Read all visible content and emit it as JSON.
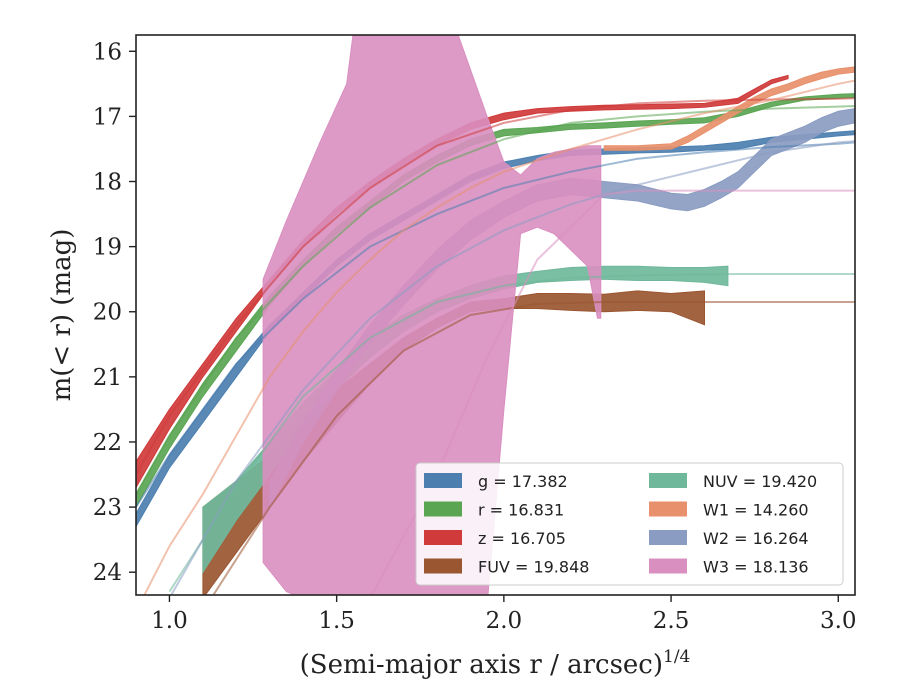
{
  "chart_data": {
    "type": "line",
    "xlabel": "(Semi-major axis r / arcsec)",
    "xlabel_sup": "1/4",
    "ylabel": "m(< r) (mag)",
    "xlim": [
      0.9,
      3.05
    ],
    "ylim": [
      24.35,
      15.75
    ],
    "y_inverted": true,
    "xticks": [
      1.0,
      1.5,
      2.0,
      2.5,
      3.0
    ],
    "xtick_labels": [
      "1.0",
      "1.5",
      "2.0",
      "2.5",
      "3.0"
    ],
    "yticks": [
      16,
      17,
      18,
      19,
      20,
      21,
      22,
      23,
      24
    ],
    "ytick_labels": [
      "16",
      "17",
      "18",
      "19",
      "20",
      "21",
      "22",
      "23",
      "24"
    ],
    "grid": false,
    "legend_placement": "lower-right",
    "series": [
      {
        "name": "g",
        "legend_label": "g = 17.382",
        "color": "#4c7fb0",
        "band": [
          [
            0.9,
            23.3,
            23.1
          ],
          [
            1.0,
            22.4,
            22.2
          ],
          [
            1.1,
            21.7,
            21.5
          ],
          [
            1.2,
            21.0,
            20.8
          ],
          [
            1.3,
            20.3,
            20.2
          ],
          [
            1.4,
            19.8,
            19.7
          ],
          [
            1.5,
            19.3,
            19.2
          ],
          [
            1.6,
            18.9,
            18.8
          ],
          [
            1.7,
            18.6,
            18.5
          ],
          [
            1.8,
            18.3,
            18.2
          ],
          [
            1.9,
            18.0,
            17.9
          ],
          [
            2.0,
            17.8,
            17.7
          ],
          [
            2.1,
            17.68,
            17.6
          ],
          [
            2.2,
            17.6,
            17.52
          ],
          [
            2.3,
            17.58,
            17.5
          ],
          [
            2.4,
            17.56,
            17.48
          ],
          [
            2.5,
            17.55,
            17.47
          ],
          [
            2.6,
            17.52,
            17.45
          ],
          [
            2.7,
            17.5,
            17.4
          ],
          [
            2.8,
            17.4,
            17.32
          ],
          [
            2.9,
            17.35,
            17.28
          ],
          [
            3.0,
            17.3,
            17.24
          ],
          [
            3.05,
            17.28,
            17.22
          ]
        ],
        "model": [
          [
            0.9,
            23.0
          ],
          [
            1.0,
            22.2
          ],
          [
            1.2,
            20.8
          ],
          [
            1.4,
            19.8
          ],
          [
            1.6,
            19.0
          ],
          [
            1.8,
            18.5
          ],
          [
            2.0,
            18.1
          ],
          [
            2.2,
            17.85
          ],
          [
            2.4,
            17.65
          ],
          [
            2.6,
            17.55
          ],
          [
            2.8,
            17.47
          ],
          [
            3.0,
            17.42
          ],
          [
            3.05,
            17.4
          ]
        ]
      },
      {
        "name": "r",
        "legend_label": "r = 16.831",
        "color": "#5aa552",
        "band": [
          [
            0.9,
            23.0,
            22.8
          ],
          [
            1.0,
            22.1,
            21.9
          ],
          [
            1.1,
            21.3,
            21.1
          ],
          [
            1.2,
            20.6,
            20.4
          ],
          [
            1.3,
            19.9,
            19.75
          ],
          [
            1.4,
            19.3,
            19.2
          ],
          [
            1.5,
            18.8,
            18.7
          ],
          [
            1.6,
            18.4,
            18.3
          ],
          [
            1.7,
            18.0,
            17.9
          ],
          [
            1.8,
            17.7,
            17.6
          ],
          [
            1.9,
            17.45,
            17.35
          ],
          [
            2.0,
            17.3,
            17.2
          ],
          [
            2.1,
            17.25,
            17.17
          ],
          [
            2.2,
            17.2,
            17.12
          ],
          [
            2.3,
            17.18,
            17.1
          ],
          [
            2.4,
            17.15,
            17.07
          ],
          [
            2.5,
            17.12,
            17.05
          ],
          [
            2.6,
            17.1,
            17.02
          ],
          [
            2.7,
            17.0,
            16.92
          ],
          [
            2.8,
            16.85,
            16.78
          ],
          [
            2.9,
            16.75,
            16.7
          ],
          [
            3.0,
            16.72,
            16.66
          ],
          [
            3.05,
            16.71,
            16.65
          ]
        ],
        "model": [
          [
            0.9,
            22.8
          ],
          [
            1.0,
            21.9
          ],
          [
            1.2,
            20.4
          ],
          [
            1.4,
            19.3
          ],
          [
            1.6,
            18.4
          ],
          [
            1.8,
            17.75
          ],
          [
            2.0,
            17.35
          ],
          [
            2.2,
            17.1
          ],
          [
            2.4,
            17.0
          ],
          [
            2.6,
            16.93
          ],
          [
            2.8,
            16.88
          ],
          [
            3.0,
            16.85
          ],
          [
            3.05,
            16.84
          ]
        ]
      },
      {
        "name": "z",
        "legend_label": "z = 16.705",
        "color": "#d03a3a",
        "band": [
          [
            0.9,
            22.7,
            22.3
          ],
          [
            1.0,
            21.8,
            21.5
          ],
          [
            1.1,
            21.0,
            20.8
          ],
          [
            1.2,
            20.3,
            20.1
          ],
          [
            1.3,
            19.6,
            19.5
          ],
          [
            1.4,
            19.0,
            18.9
          ],
          [
            1.5,
            18.5,
            18.4
          ],
          [
            1.6,
            18.1,
            18.0
          ],
          [
            1.7,
            17.75,
            17.65
          ],
          [
            1.8,
            17.45,
            17.35
          ],
          [
            1.9,
            17.2,
            17.1
          ],
          [
            2.0,
            17.05,
            16.95
          ],
          [
            2.1,
            16.95,
            16.88
          ],
          [
            2.2,
            16.92,
            16.85
          ],
          [
            2.3,
            16.9,
            16.83
          ],
          [
            2.4,
            16.89,
            16.82
          ],
          [
            2.5,
            16.88,
            16.81
          ],
          [
            2.6,
            16.86,
            16.8
          ],
          [
            2.7,
            16.8,
            16.72
          ],
          [
            2.75,
            16.65,
            16.58
          ],
          [
            2.8,
            16.5,
            16.44
          ],
          [
            2.85,
            16.42,
            16.37
          ]
        ],
        "model": [
          [
            0.9,
            22.5
          ],
          [
            1.0,
            21.6
          ],
          [
            1.2,
            20.2
          ],
          [
            1.4,
            19.0
          ],
          [
            1.6,
            18.1
          ],
          [
            1.8,
            17.45
          ],
          [
            2.0,
            17.1
          ],
          [
            2.2,
            16.9
          ],
          [
            2.4,
            16.8
          ],
          [
            2.6,
            16.76
          ],
          [
            2.8,
            16.74
          ],
          [
            3.0,
            16.73
          ],
          [
            3.05,
            16.72
          ]
        ]
      },
      {
        "name": "FUV",
        "legend_label": "FUV = 19.848",
        "color": "#9a5631",
        "band": [
          [
            1.1,
            24.4,
            23.0
          ],
          [
            1.2,
            23.7,
            22.6
          ],
          [
            1.3,
            23.0,
            22.2
          ],
          [
            1.4,
            22.3,
            21.7
          ],
          [
            1.5,
            21.7,
            21.2
          ],
          [
            1.6,
            21.1,
            20.8
          ],
          [
            1.7,
            20.6,
            20.4
          ],
          [
            1.8,
            20.25,
            20.1
          ],
          [
            1.9,
            20.0,
            19.85
          ],
          [
            2.0,
            19.95,
            19.8
          ],
          [
            2.1,
            19.95,
            19.72
          ],
          [
            2.2,
            19.98,
            19.72
          ],
          [
            2.3,
            20.0,
            19.73
          ],
          [
            2.4,
            19.98,
            19.68
          ],
          [
            2.5,
            20.0,
            19.72
          ],
          [
            2.6,
            20.2,
            19.68
          ]
        ],
        "model": [
          [
            1.1,
            24.6
          ],
          [
            1.3,
            23.0
          ],
          [
            1.5,
            21.6
          ],
          [
            1.7,
            20.6
          ],
          [
            1.9,
            20.05
          ],
          [
            2.1,
            19.88
          ],
          [
            2.3,
            19.85
          ],
          [
            2.6,
            19.85
          ],
          [
            3.05,
            19.85
          ]
        ]
      },
      {
        "name": "NUV",
        "legend_label": "NUV = 19.420",
        "color": "#6fb89b",
        "band": [
          [
            1.1,
            24.0,
            23.0
          ],
          [
            1.2,
            23.2,
            22.6
          ],
          [
            1.3,
            22.5,
            22.0
          ],
          [
            1.4,
            21.8,
            21.4
          ],
          [
            1.5,
            21.2,
            20.9
          ],
          [
            1.6,
            20.7,
            20.4
          ],
          [
            1.7,
            20.3,
            20.05
          ],
          [
            1.8,
            20.0,
            19.8
          ],
          [
            1.9,
            19.8,
            19.6
          ],
          [
            2.0,
            19.65,
            19.45
          ],
          [
            2.1,
            19.55,
            19.38
          ],
          [
            2.2,
            19.52,
            19.32
          ],
          [
            2.3,
            19.5,
            19.3
          ],
          [
            2.4,
            19.52,
            19.3
          ],
          [
            2.5,
            19.52,
            19.32
          ],
          [
            2.6,
            19.55,
            19.32
          ],
          [
            2.67,
            19.6,
            19.3
          ]
        ],
        "model": [
          [
            1.0,
            24.3
          ],
          [
            1.2,
            22.7
          ],
          [
            1.4,
            21.3
          ],
          [
            1.6,
            20.4
          ],
          [
            1.8,
            19.85
          ],
          [
            2.0,
            19.6
          ],
          [
            2.2,
            19.48
          ],
          [
            2.4,
            19.44
          ],
          [
            2.7,
            19.42
          ],
          [
            3.05,
            19.42
          ]
        ]
      },
      {
        "name": "W1",
        "legend_label": "W1 = 14.260",
        "color": "#e8906b",
        "band": [
          [
            2.3,
            17.52,
            17.45
          ],
          [
            2.4,
            17.52,
            17.45
          ],
          [
            2.5,
            17.5,
            17.42
          ],
          [
            2.55,
            17.4,
            17.3
          ],
          [
            2.6,
            17.25,
            17.15
          ],
          [
            2.65,
            17.1,
            17.0
          ],
          [
            2.7,
            16.95,
            16.85
          ],
          [
            2.75,
            16.8,
            16.7
          ],
          [
            2.8,
            16.68,
            16.58
          ],
          [
            2.85,
            16.6,
            16.5
          ],
          [
            2.9,
            16.5,
            16.4
          ],
          [
            2.95,
            16.42,
            16.32
          ],
          [
            3.0,
            16.35,
            16.27
          ],
          [
            3.05,
            16.32,
            16.24
          ]
        ],
        "model": [
          [
            0.92,
            24.4
          ],
          [
            1.0,
            23.6
          ],
          [
            1.1,
            22.8
          ],
          [
            1.2,
            21.9
          ],
          [
            1.3,
            21.0
          ],
          [
            1.4,
            20.3
          ],
          [
            1.5,
            19.7
          ],
          [
            1.6,
            19.2
          ],
          [
            1.7,
            18.75
          ],
          [
            1.8,
            18.4
          ],
          [
            1.9,
            18.1
          ],
          [
            2.0,
            17.85
          ],
          [
            2.2,
            17.5
          ],
          [
            2.4,
            17.2
          ],
          [
            2.6,
            16.95
          ],
          [
            2.8,
            16.75
          ],
          [
            3.0,
            16.5
          ],
          [
            3.05,
            16.45
          ]
        ]
      },
      {
        "name": "W2",
        "legend_label": "W2 = 16.264",
        "color": "#8b9cc2",
        "band": [
          [
            1.3,
            23.0,
            22.6
          ],
          [
            1.4,
            22.0,
            21.7
          ],
          [
            1.5,
            21.2,
            20.9
          ],
          [
            1.6,
            20.5,
            20.2
          ],
          [
            1.7,
            19.9,
            19.6
          ],
          [
            1.8,
            19.35,
            19.05
          ],
          [
            1.9,
            18.9,
            18.6
          ],
          [
            2.0,
            18.55,
            18.3
          ],
          [
            2.1,
            18.3,
            18.05
          ],
          [
            2.2,
            18.2,
            17.95
          ],
          [
            2.3,
            18.25,
            18.0
          ],
          [
            2.4,
            18.3,
            18.05
          ],
          [
            2.5,
            18.42,
            18.18
          ],
          [
            2.55,
            18.45,
            18.2
          ],
          [
            2.6,
            18.38,
            18.12
          ],
          [
            2.65,
            18.25,
            18.0
          ],
          [
            2.7,
            18.1,
            17.85
          ],
          [
            2.75,
            17.85,
            17.6
          ],
          [
            2.8,
            17.6,
            17.35
          ],
          [
            2.85,
            17.5,
            17.25
          ],
          [
            2.9,
            17.4,
            17.15
          ],
          [
            2.95,
            17.25,
            17.02
          ],
          [
            3.0,
            17.15,
            16.92
          ],
          [
            3.05,
            17.1,
            16.88
          ]
        ],
        "model": [
          [
            1.0,
            24.4
          ],
          [
            1.2,
            22.6
          ],
          [
            1.4,
            21.2
          ],
          [
            1.6,
            20.1
          ],
          [
            1.8,
            19.3
          ],
          [
            2.0,
            18.75
          ],
          [
            2.2,
            18.35
          ],
          [
            2.4,
            18.05
          ],
          [
            2.6,
            17.8
          ],
          [
            2.8,
            17.55
          ],
          [
            3.0,
            17.4
          ],
          [
            3.05,
            17.38
          ]
        ]
      },
      {
        "name": "W3",
        "legend_label": "W3 = 18.136",
        "color": "#d98fc0",
        "band": [
          [
            1.28,
            23.85,
            19.5
          ],
          [
            1.35,
            24.3,
            18.6
          ],
          [
            1.45,
            24.5,
            17.4
          ],
          [
            1.53,
            24.5,
            16.5
          ],
          [
            1.55,
            24.5,
            15.7
          ],
          [
            1.86,
            24.5,
            15.7
          ],
          [
            1.95,
            24.5,
            17.0
          ],
          [
            2.0,
            21.5,
            17.7
          ],
          [
            2.05,
            18.8,
            17.9
          ],
          [
            2.1,
            18.7,
            17.65
          ],
          [
            2.15,
            18.8,
            17.55
          ],
          [
            2.2,
            19.05,
            17.5
          ],
          [
            2.25,
            19.3,
            17.45
          ],
          [
            2.28,
            20.1,
            17.45
          ],
          [
            2.29,
            20.1,
            17.45
          ]
        ],
        "model": [
          [
            1.6,
            24.4
          ],
          [
            1.8,
            22.5
          ],
          [
            1.95,
            20.7
          ],
          [
            2.1,
            19.2
          ],
          [
            2.3,
            18.2
          ],
          [
            2.4,
            18.14
          ],
          [
            3.05,
            18.14
          ]
        ]
      }
    ]
  }
}
